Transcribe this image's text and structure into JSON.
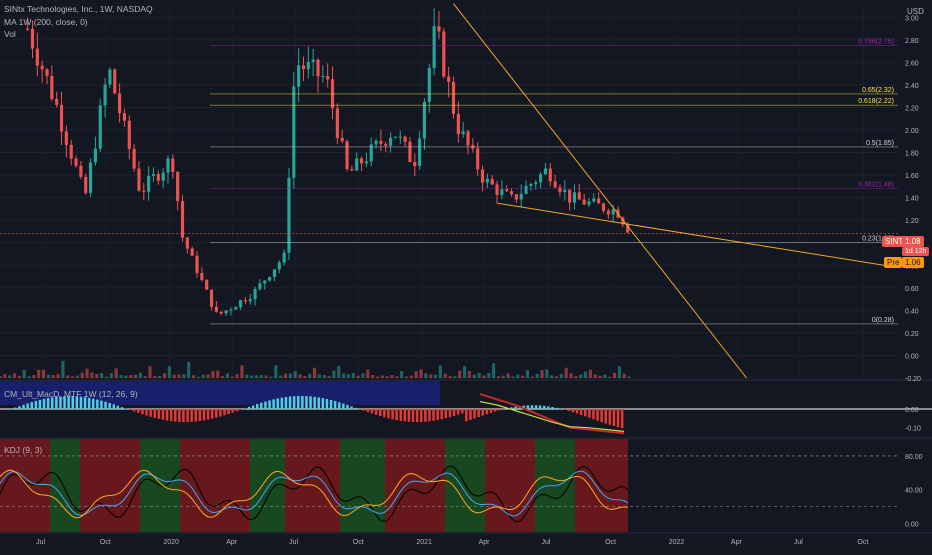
{
  "header": {
    "symbol_title": "SINtx Technologies, Inc., 1W, NASDAQ",
    "ma_label": "MA",
    "ma_params": "1W (200, close, 0)",
    "vol_label": "Vol",
    "currency": "USD"
  },
  "macd_label": "CM_Ult_MacD_MTF 1W (12, 26, 9)",
  "kdj_label": "KDJ (9, 3)",
  "price_tags": {
    "symbol": "SINT",
    "last": "1.08",
    "countdown": "1d 12h",
    "pre_label": "Pre",
    "pre_value": "1.06"
  },
  "colors": {
    "up": "#26a69a",
    "down": "#ef5350",
    "background": "#131722",
    "trendline": "#f5a623",
    "fib_gold": "#ffeb3b",
    "fib_purple": "#9c27b0"
  },
  "chart_data": [
    {
      "type": "candlestick",
      "title": "SINtx Technologies, Inc., 1W, NASDAQ",
      "ylim": [
        -0.2,
        3.1
      ],
      "x_range": [
        "2019-05-01",
        "2022-11-20"
      ],
      "ytick_labels": [
        "3.00",
        "2.80",
        "2.60",
        "2.40",
        "2.20",
        "2.00",
        "1.80",
        "1.60",
        "1.40",
        "1.20",
        "1.00",
        "0.80",
        "0.60",
        "0.40",
        "0.20",
        "0.00",
        "-0.20"
      ],
      "xtick_labels": [
        "Jul",
        "Oct",
        "2020",
        "Apr",
        "Jul",
        "Oct",
        "2021",
        "Apr",
        "Jul",
        "Oct",
        "2022",
        "Apr",
        "Jul",
        "Oct"
      ],
      "fib_levels": [
        {
          "label": "0.786(2.75)",
          "value": 2.75
        },
        {
          "label": "0.65(2.32)",
          "value": 2.32
        },
        {
          "label": "0.618(2.22)",
          "value": 2.22
        },
        {
          "label": "0.5(1.85)",
          "value": 1.85
        },
        {
          "label": "0.382(1.48)",
          "value": 1.48
        },
        {
          "label": "0.23(1.00)",
          "value": 1.0
        },
        {
          "label": "0(0.28)",
          "value": 0.28
        }
      ],
      "trendlines": [
        {
          "from": [
            "2021-02-15",
            3.12
          ],
          "to": [
            "2022-04-15",
            -0.2
          ]
        },
        {
          "from": [
            "2021-04-20",
            1.35
          ],
          "to": [
            "2022-11-20",
            0.78
          ]
        }
      ],
      "key_points": [
        {
          "date": "2019-06-10",
          "value": 2.9
        },
        {
          "date": "2019-07-20",
          "value": 2.25
        },
        {
          "date": "2019-09-01",
          "value": 1.4
        },
        {
          "date": "2019-10-05",
          "value": 2.55
        },
        {
          "date": "2019-11-20",
          "value": 1.45
        },
        {
          "date": "2020-01-05",
          "value": 1.75
        },
        {
          "date": "2020-01-20",
          "value": 1.05
        },
        {
          "date": "2020-03-10",
          "value": 0.35
        },
        {
          "date": "2020-05-01",
          "value": 0.55
        },
        {
          "date": "2020-06-15",
          "value": 0.88
        },
        {
          "date": "2020-07-01",
          "value": 2.6
        },
        {
          "date": "2020-08-15",
          "value": 2.45
        },
        {
          "date": "2020-09-15",
          "value": 1.6
        },
        {
          "date": "2020-11-20",
          "value": 2.0
        },
        {
          "date": "2020-12-20",
          "value": 1.7
        },
        {
          "date": "2021-01-20",
          "value": 2.9
        },
        {
          "date": "2021-02-20",
          "value": 2.05
        },
        {
          "date": "2021-04-01",
          "value": 1.55
        },
        {
          "date": "2021-05-10",
          "value": 1.38
        },
        {
          "date": "2021-07-01",
          "value": 1.65
        },
        {
          "date": "2021-08-01",
          "value": 1.4
        },
        {
          "date": "2021-10-10",
          "value": 1.28
        },
        {
          "date": "2021-10-30",
          "value": 1.08
        }
      ],
      "last_price": 1.08
    },
    {
      "type": "bar",
      "title": "Vol",
      "values_relative": [
        0.1,
        0.15,
        0.12,
        0.2,
        0.08,
        0.5,
        0.1,
        0.15,
        0.3,
        0.4,
        0.2,
        0.12,
        0.15,
        0.85,
        0.2,
        0.1,
        0.12,
        0.3,
        0.45,
        0.25,
        0.15,
        0.2,
        0.1,
        0.18,
        0.6,
        0.15
      ]
    },
    {
      "type": "line",
      "title": "CM_Ult_MacD_MTF 1W (12, 26, 9)",
      "ylim": [
        -0.15,
        0.15
      ],
      "ytick_labels": [
        "0.00",
        "-0.10"
      ],
      "series": [
        {
          "values": [
            0.08,
            0.05,
            0.02,
            -0.02,
            -0.06,
            -0.1,
            -0.11,
            -0.12,
            -0.13
          ]
        },
        {
          "values": [
            0.04,
            0.02,
            -0.01,
            -0.04,
            -0.07,
            -0.095,
            -0.1,
            -0.11,
            -0.12
          ]
        }
      ]
    },
    {
      "type": "line",
      "title": "KDJ (9, 3)",
      "ylim": [
        -10,
        100
      ],
      "ytick_labels": [
        "80.00",
        "40.00",
        "0.00"
      ],
      "guides": [
        80,
        20
      ]
    }
  ]
}
